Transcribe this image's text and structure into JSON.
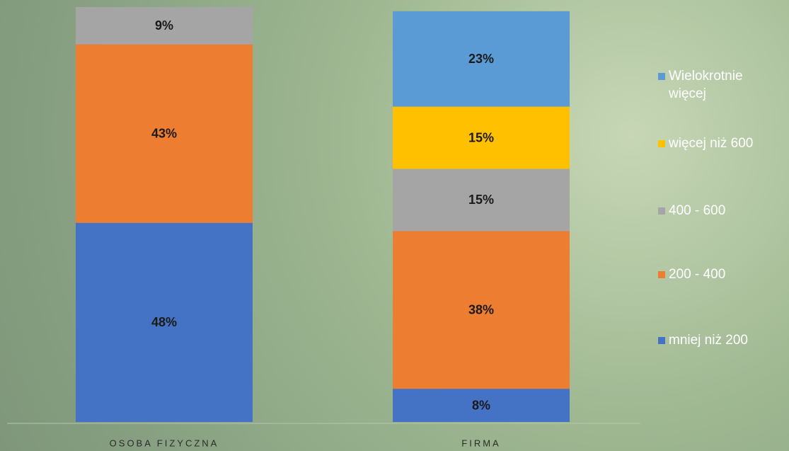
{
  "chart_data": {
    "type": "stacked_bar",
    "categories": [
      "OSOBA FIZYCZNA",
      "FIRMA"
    ],
    "series": [
      {
        "name": "mniej niż 200",
        "color": "#4472c4",
        "values": [
          48,
          8
        ],
        "value_labels": [
          "48%",
          "8%"
        ]
      },
      {
        "name": "200 - 400",
        "color": "#ed7d31",
        "values": [
          43,
          38
        ],
        "value_labels": [
          "43%",
          "38%"
        ]
      },
      {
        "name": "400 - 600",
        "color": "#a5a5a5",
        "values": [
          9,
          15
        ],
        "value_labels": [
          "9%",
          "15%"
        ]
      },
      {
        "name": "więcej niż 600",
        "color": "#ffc000",
        "values": [
          null,
          15
        ],
        "value_labels": [
          null,
          "15%"
        ]
      },
      {
        "name": "Wielokrotnie więcej",
        "color": "#5b9bd5",
        "values": [
          null,
          23
        ],
        "value_labels": [
          null,
          "23%"
        ]
      }
    ],
    "ylim": [
      0,
      100
    ],
    "legend": "right"
  }
}
